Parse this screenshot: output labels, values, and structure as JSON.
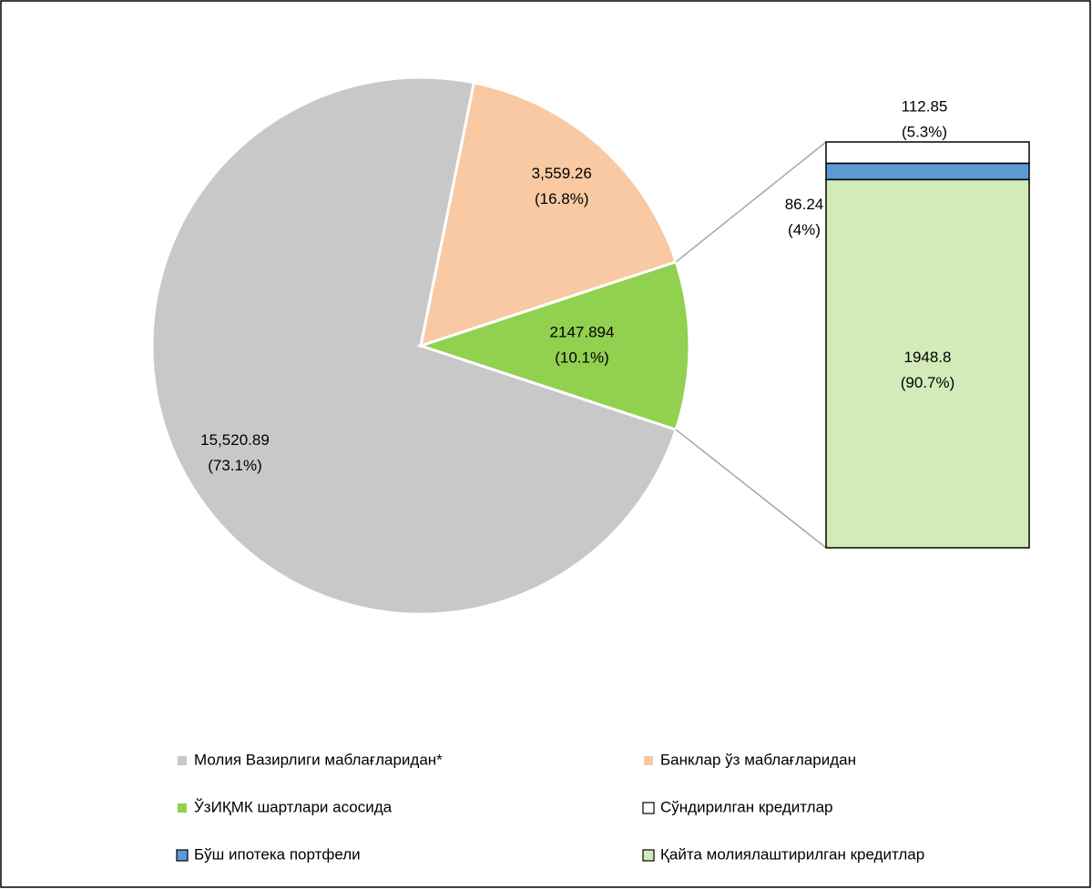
{
  "chart_data": {
    "type": "pie-of-bar",
    "pie": {
      "categories": [
        "Молия Вазирлиги маблағларидан*",
        "Банклар ўз маблағларидан",
        "ЎзИҚМК шартлари асосида"
      ],
      "colors": [
        "#c8c8c8",
        "#f8c9a2",
        "#92d050"
      ],
      "values": [
        15520.89,
        3559.26,
        2147.894
      ],
      "value_labels": [
        "15,520.89",
        "3,559.26",
        "2147.894"
      ],
      "percents": [
        73.1,
        16.8,
        10.1
      ],
      "percent_labels": [
        "(73.1%)",
        "(16.8%)",
        "(10.1%)"
      ]
    },
    "bar": {
      "categories": [
        "Сўндирилган кредитлар",
        "Бўш ипотека портфели",
        "Қайта молиялаштирилган кредитлар"
      ],
      "colors": [
        "#ffffff",
        "#5b9bd5",
        "#d3ebb9"
      ],
      "values": [
        112.85,
        86.24,
        1948.8
      ],
      "value_labels": [
        "112.85",
        "86.24",
        "1948.8"
      ],
      "percents": [
        5.3,
        4,
        90.7
      ],
      "percent_labels": [
        "(5.3%)",
        "(4%)",
        "(90.7%)"
      ]
    }
  }
}
